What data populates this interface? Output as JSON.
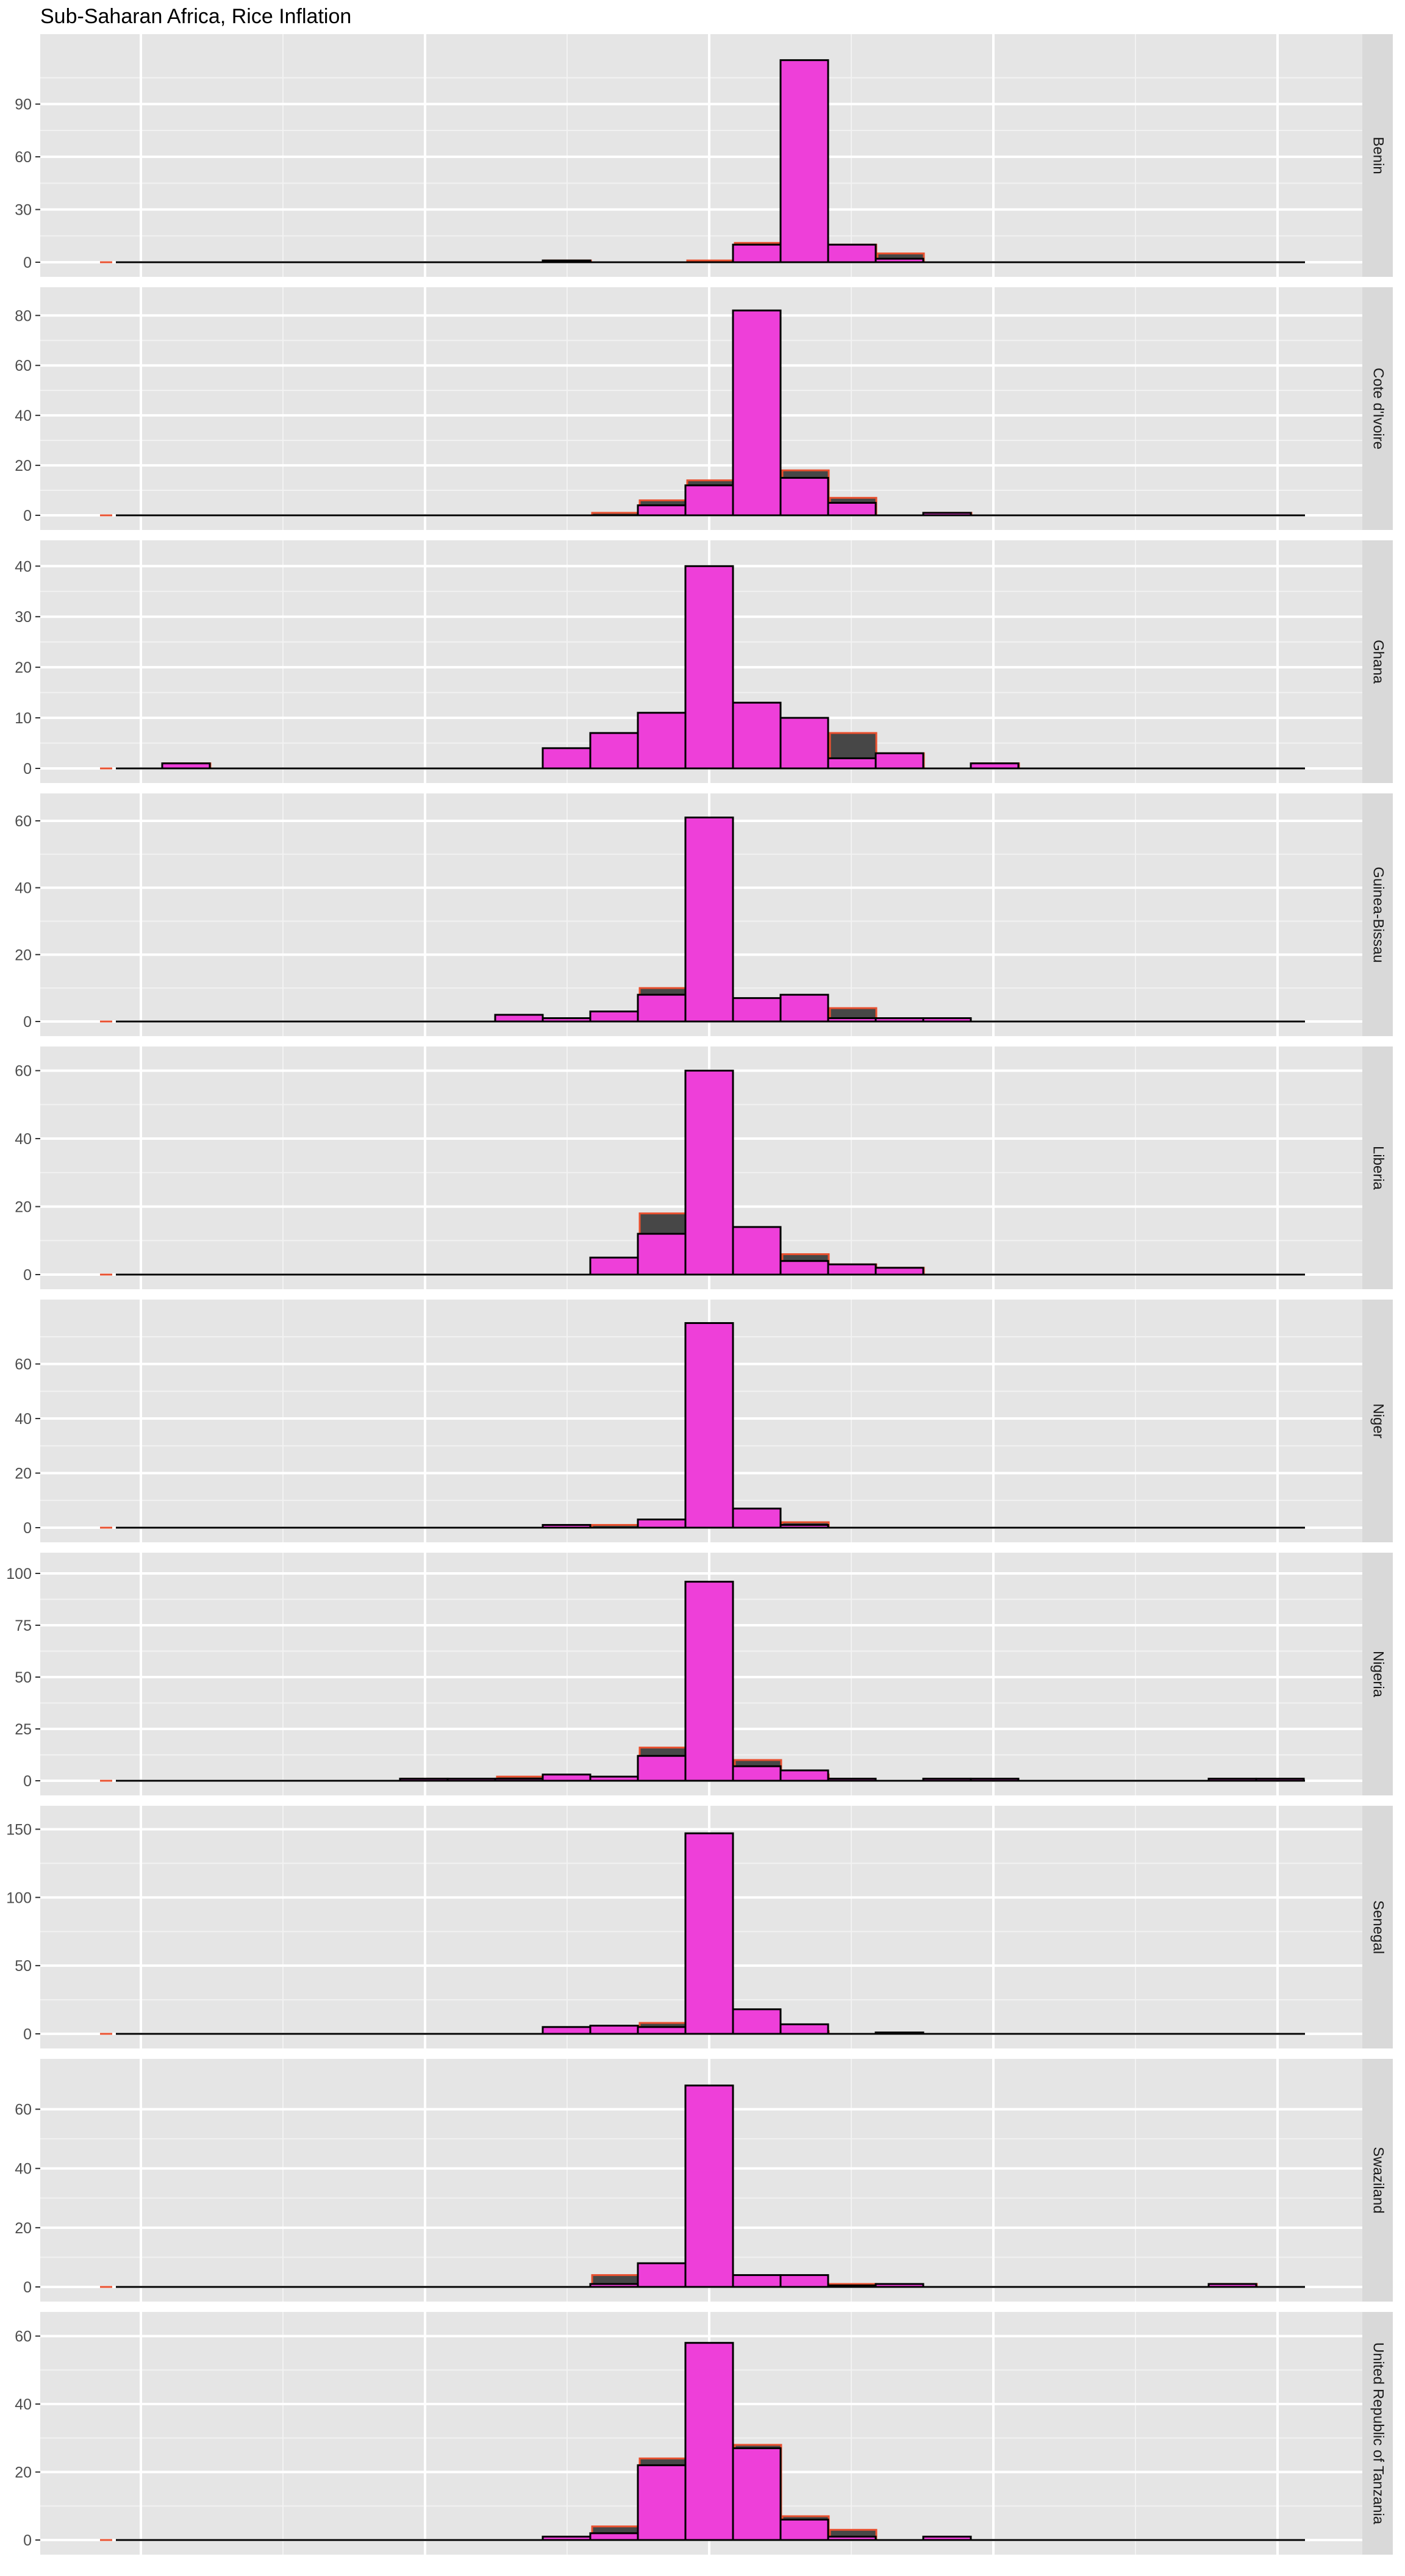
{
  "chart_data": {
    "type": "histogram",
    "title": "Sub-Saharan Africa, Rice Inflation",
    "xlabel": "",
    "ylabel": "",
    "grid": true,
    "facets": "rows",
    "colors": {
      "fill": "#ee3fd9",
      "outline": "#000000",
      "background_bar": "#474747",
      "background_bar_outline": "#e8502f",
      "panel": "#e5e5e5",
      "strip": "#d9d9d9"
    },
    "panels": [
      {
        "name": "Benin",
        "ylim": [
          0,
          118
        ],
        "yticks": [
          0,
          30,
          60,
          90
        ],
        "bins": [
          [
            1,
            10
          ],
          [
            2,
            115
          ],
          [
            3,
            10
          ],
          [
            4,
            2
          ],
          [
            -3,
            1
          ]
        ],
        "bg_bins": [
          [
            0,
            1
          ],
          [
            1,
            11
          ],
          [
            3,
            10
          ],
          [
            4,
            5
          ],
          [
            -3,
            1
          ]
        ]
      },
      {
        "name": "Cote d'Ivoire",
        "ylim": [
          0,
          83
        ],
        "yticks": [
          0,
          20,
          40,
          60,
          80
        ],
        "bins": [
          [
            -1,
            4
          ],
          [
            0,
            12
          ],
          [
            1,
            82
          ],
          [
            2,
            15
          ],
          [
            3,
            5
          ],
          [
            5,
            1
          ]
        ],
        "bg_bins": [
          [
            -2,
            1
          ],
          [
            -1,
            6
          ],
          [
            0,
            14
          ],
          [
            2,
            18
          ],
          [
            3,
            7
          ],
          [
            5,
            1
          ]
        ]
      },
      {
        "name": "Ghana",
        "ylim": [
          0,
          41
        ],
        "yticks": [
          0,
          10,
          20,
          30,
          40
        ],
        "bins": [
          [
            -11,
            1
          ],
          [
            -3,
            4
          ],
          [
            -2,
            7
          ],
          [
            -1,
            11
          ],
          [
            0,
            40
          ],
          [
            1,
            13
          ],
          [
            2,
            10
          ],
          [
            3,
            2
          ],
          [
            4,
            3
          ],
          [
            6,
            1
          ]
        ],
        "bg_bins": [
          [
            -11,
            1
          ],
          [
            -3,
            2
          ],
          [
            3,
            7
          ],
          [
            4,
            3
          ],
          [
            6,
            1
          ]
        ]
      },
      {
        "name": "Guinea-Bissau",
        "ylim": [
          0,
          62
        ],
        "yticks": [
          0,
          20,
          40,
          60
        ],
        "bins": [
          [
            -4,
            2
          ],
          [
            -3,
            1
          ],
          [
            -2,
            3
          ],
          [
            -1,
            8
          ],
          [
            0,
            61
          ],
          [
            1,
            7
          ],
          [
            2,
            8
          ],
          [
            3,
            1
          ],
          [
            4,
            1
          ],
          [
            5,
            1
          ]
        ],
        "bg_bins": [
          [
            -1,
            10
          ],
          [
            3,
            4
          ]
        ]
      },
      {
        "name": "Liberia",
        "ylim": [
          0,
          61
        ],
        "yticks": [
          0,
          20,
          40,
          60
        ],
        "bins": [
          [
            -2,
            5
          ],
          [
            -1,
            12
          ],
          [
            0,
            60
          ],
          [
            1,
            14
          ],
          [
            2,
            4
          ],
          [
            3,
            3
          ],
          [
            4,
            2
          ]
        ],
        "bg_bins": [
          [
            -2,
            1
          ],
          [
            -1,
            18
          ],
          [
            2,
            6
          ],
          [
            3,
            3
          ],
          [
            4,
            2
          ]
        ]
      },
      {
        "name": "Niger",
        "ylim": [
          0,
          76
        ],
        "yticks": [
          0,
          20,
          40,
          60
        ],
        "bins": [
          [
            -3,
            1
          ],
          [
            -1,
            3
          ],
          [
            0,
            75
          ],
          [
            1,
            7
          ],
          [
            2,
            1
          ]
        ],
        "bg_bins": [
          [
            -2,
            1
          ],
          [
            2,
            2
          ]
        ]
      },
      {
        "name": "Nigeria",
        "ylim": [
          0,
          100
        ],
        "yticks": [
          0,
          25,
          50,
          75,
          100
        ],
        "bins": [
          [
            -6,
            1
          ],
          [
            -5,
            1
          ],
          [
            -4,
            1
          ],
          [
            -3,
            3
          ],
          [
            -2,
            2
          ],
          [
            -1,
            12
          ],
          [
            0,
            96
          ],
          [
            1,
            7
          ],
          [
            2,
            5
          ],
          [
            3,
            1
          ],
          [
            5,
            1
          ],
          [
            6,
            1
          ],
          [
            11,
            1
          ],
          [
            12,
            1
          ]
        ],
        "bg_bins": [
          [
            -6,
            1
          ],
          [
            -4,
            2
          ],
          [
            -1,
            16
          ],
          [
            1,
            10
          ],
          [
            2,
            3
          ]
        ]
      },
      {
        "name": "Senegal",
        "ylim": [
          0,
          152
        ],
        "yticks": [
          0,
          50,
          100,
          150
        ],
        "bins": [
          [
            -3,
            5
          ],
          [
            -2,
            6
          ],
          [
            -1,
            5
          ],
          [
            0,
            147
          ],
          [
            1,
            18
          ],
          [
            2,
            7
          ],
          [
            4,
            1
          ]
        ],
        "bg_bins": [
          [
            -3,
            3
          ],
          [
            -1,
            8
          ],
          [
            2,
            2
          ]
        ]
      },
      {
        "name": "Swaziland",
        "ylim": [
          0,
          70
        ],
        "yticks": [
          0,
          20,
          40,
          60
        ],
        "bins": [
          [
            -2,
            1
          ],
          [
            -1,
            8
          ],
          [
            0,
            68
          ],
          [
            1,
            4
          ],
          [
            2,
            4
          ],
          [
            3,
            0.5
          ],
          [
            4,
            1
          ],
          [
            11,
            1
          ]
        ],
        "bg_bins": [
          [
            -2,
            4
          ],
          [
            3,
            1
          ],
          [
            11,
            1
          ]
        ]
      },
      {
        "name": "United Republic of Tanzania",
        "ylim": [
          0,
          61
        ],
        "yticks": [
          0,
          20,
          40,
          60
        ],
        "bins": [
          [
            -3,
            1
          ],
          [
            -2,
            2
          ],
          [
            -1,
            22
          ],
          [
            0,
            58
          ],
          [
            1,
            27
          ],
          [
            2,
            6
          ],
          [
            3,
            1
          ],
          [
            5,
            1
          ]
        ],
        "bg_bins": [
          [
            -2,
            4
          ],
          [
            -1,
            24
          ],
          [
            1,
            28
          ],
          [
            2,
            7
          ],
          [
            3,
            3
          ]
        ]
      }
    ]
  }
}
